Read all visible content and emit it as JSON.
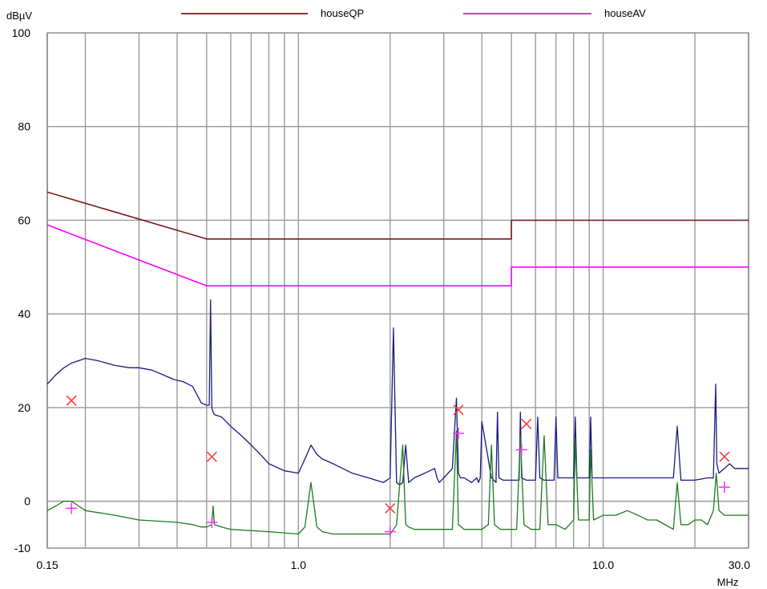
{
  "chart_data": {
    "type": "line",
    "x_scale": "log",
    "xlim": [
      0.15,
      30.0
    ],
    "ylim": [
      -10,
      100
    ],
    "grid": true,
    "legend_position": "top",
    "ylabel": "dBµV",
    "xlabel": "MHz",
    "y_ticks": [
      -10,
      0,
      20,
      40,
      60,
      80,
      100
    ],
    "x_tick_labels": [
      {
        "value": 0.15,
        "label": "0.15"
      },
      {
        "value": 1.0,
        "label": "1.0"
      },
      {
        "value": 10.0,
        "label": "10.0"
      },
      {
        "value": 30.0,
        "label": "30.0"
      }
    ],
    "x_grid_values": [
      0.2,
      0.3,
      0.4,
      0.5,
      0.6,
      0.7,
      0.8,
      0.9,
      1,
      2,
      3,
      4,
      5,
      6,
      7,
      8,
      9,
      10,
      20
    ],
    "series": [
      {
        "name": "houseQP",
        "color": "#7a1a1a",
        "x": [
          0.15,
          0.5,
          5.0,
          5.0,
          30.0
        ],
        "y": [
          66,
          56,
          56,
          60,
          60
        ]
      },
      {
        "name": "houseAV",
        "color": "#ff00ff",
        "x": [
          0.15,
          0.5,
          5.0,
          5.0,
          30.0
        ],
        "y": [
          59,
          46,
          46,
          50,
          50
        ]
      },
      {
        "color": "#1a1a80",
        "x": [
          0.15,
          0.16,
          0.17,
          0.18,
          0.19,
          0.2,
          0.22,
          0.25,
          0.28,
          0.3,
          0.33,
          0.36,
          0.39,
          0.42,
          0.45,
          0.48,
          0.5,
          0.51,
          0.515,
          0.52,
          0.525,
          0.53,
          0.56,
          0.6,
          0.65,
          0.7,
          0.75,
          0.8,
          0.9,
          1.0,
          1.05,
          1.1,
          1.15,
          1.2,
          1.3,
          1.5,
          1.7,
          1.9,
          1.95,
          2.0,
          2.05,
          2.1,
          2.15,
          2.2,
          2.25,
          2.3,
          2.4,
          2.6,
          2.8,
          2.85,
          2.9,
          3.0,
          3.2,
          3.3,
          3.35,
          3.4,
          3.5,
          3.7,
          3.85,
          3.9,
          3.95,
          4.0,
          4.3,
          4.45,
          4.5,
          4.55,
          4.7,
          5.0,
          5.3,
          5.35,
          5.4,
          5.6,
          5.8,
          6.0,
          6.1,
          6.2,
          6.4,
          6.9,
          7.0,
          7.1,
          7.5,
          8.0,
          8.1,
          8.2,
          8.6,
          9.0,
          9.1,
          9.2,
          10.0,
          11.0,
          13.0,
          15.0,
          17.0,
          17.5,
          18.0,
          19.0,
          20.0,
          22.0,
          23.0,
          23.4,
          23.6,
          24.0,
          25.0,
          26.0,
          27.0,
          28.0,
          30.0
        ],
        "y": [
          25,
          27,
          28.5,
          29.5,
          30,
          30.5,
          30,
          29,
          28.5,
          28.5,
          28,
          27,
          26,
          25.5,
          24.5,
          21,
          20.5,
          20.5,
          43,
          20,
          19,
          18.5,
          18,
          16,
          14,
          12,
          10,
          8,
          6.5,
          6,
          9,
          12,
          10,
          9,
          8,
          6,
          5,
          4,
          4.5,
          5,
          37,
          4,
          3.5,
          4,
          12,
          4,
          5,
          6,
          7,
          5,
          4,
          5,
          7,
          22,
          6,
          5,
          5,
          4,
          5,
          4,
          5,
          17,
          5,
          4,
          19,
          5,
          4.5,
          4.5,
          4.5,
          19,
          5,
          4.5,
          4.5,
          4.5,
          18,
          5,
          4.5,
          4.5,
          18,
          5,
          5,
          5,
          18,
          5,
          5,
          5,
          18,
          5,
          5,
          5,
          5,
          5,
          5,
          16,
          4.5,
          4.5,
          4.5,
          5,
          5,
          25,
          8,
          6,
          7,
          8,
          7,
          7,
          7
        ]
      },
      {
        "color": "#1f7a1f",
        "x": [
          0.15,
          0.16,
          0.17,
          0.18,
          0.19,
          0.2,
          0.25,
          0.3,
          0.4,
          0.45,
          0.48,
          0.5,
          0.52,
          0.525,
          0.53,
          0.56,
          0.6,
          0.8,
          1.0,
          1.05,
          1.1,
          1.15,
          1.2,
          1.3,
          1.5,
          2.0,
          2.05,
          2.1,
          2.2,
          2.25,
          2.3,
          2.4,
          3.0,
          3.2,
          3.3,
          3.35,
          3.5,
          4.0,
          4.2,
          4.3,
          4.4,
          4.6,
          5.0,
          5.2,
          5.35,
          5.5,
          5.8,
          6.2,
          6.4,
          6.6,
          7.0,
          7.5,
          8.0,
          8.1,
          8.3,
          9.0,
          9.1,
          9.3,
          10.0,
          11.0,
          12.0,
          13.0,
          14.0,
          15.0,
          17.0,
          17.5,
          18.0,
          19.0,
          20.0,
          21.0,
          22.0,
          23.0,
          23.5,
          24.0,
          25.0,
          26.0,
          28.0,
          30.0
        ],
        "y": [
          -2,
          -1,
          0,
          0,
          -1,
          -2,
          -3,
          -4,
          -4.5,
          -5,
          -5.5,
          -5.5,
          -5,
          -1,
          -5,
          -5.5,
          -6,
          -6.5,
          -7,
          -5.5,
          4,
          -5.5,
          -6.5,
          -7,
          -7,
          -7,
          -6,
          -5,
          12,
          -5,
          -5.5,
          -6,
          -6,
          -6,
          15,
          -5,
          -6,
          -6,
          -5,
          12,
          -5,
          -6,
          -6,
          -6,
          14,
          -5,
          -6,
          -6,
          14,
          -5,
          -5,
          -6,
          -4,
          13,
          -4,
          -4,
          11,
          -4,
          -3,
          -3,
          -2,
          -3,
          -4,
          -4,
          -6,
          4,
          -5,
          -5,
          -4,
          -4,
          -5,
          -2,
          6,
          -2,
          -3,
          -3,
          -3,
          -3
        ]
      }
    ],
    "qp_markers": {
      "color": "#ff3b3b",
      "x": [
        0.18,
        0.52,
        2.0,
        3.35,
        5.6,
        25.0
      ],
      "y": [
        21.5,
        9.5,
        -1.5,
        19.5,
        16.5,
        9.5
      ]
    },
    "av_markers": {
      "color": "#ff33ff",
      "x": [
        0.18,
        0.52,
        2.0,
        3.35,
        5.4,
        25.0
      ],
      "y": [
        -1.5,
        -4.5,
        -6.5,
        14.5,
        11,
        3
      ]
    }
  }
}
